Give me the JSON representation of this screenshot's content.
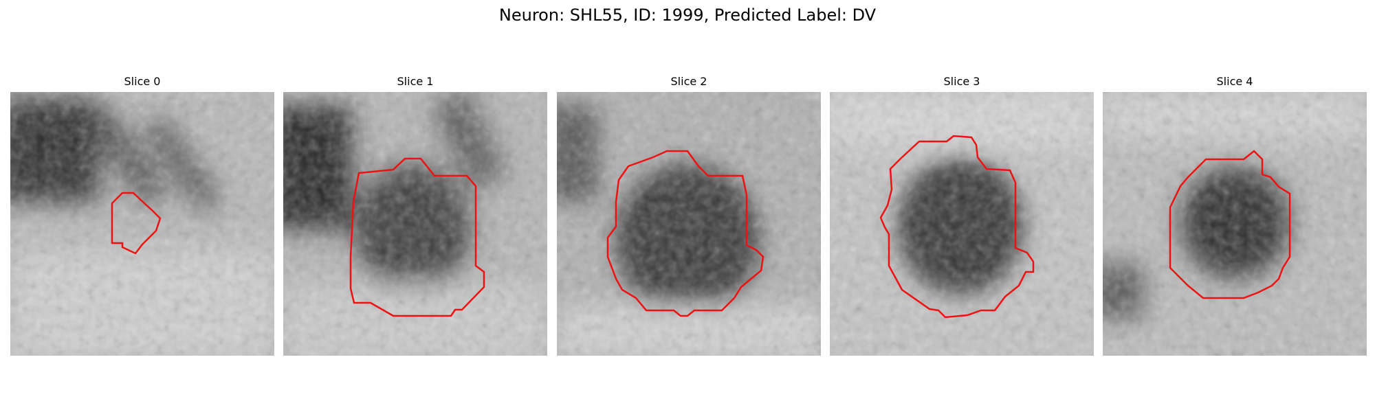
{
  "figure": {
    "title": "Neuron: SHL55, ID: 1999, Predicted Label: DV"
  },
  "colors": {
    "contour": "#ee1111"
  },
  "panels": [
    {
      "title": "Slice 0"
    },
    {
      "title": "Slice 1"
    },
    {
      "title": "Slice 2"
    },
    {
      "title": "Slice 3"
    },
    {
      "title": "Slice 4"
    }
  ]
}
